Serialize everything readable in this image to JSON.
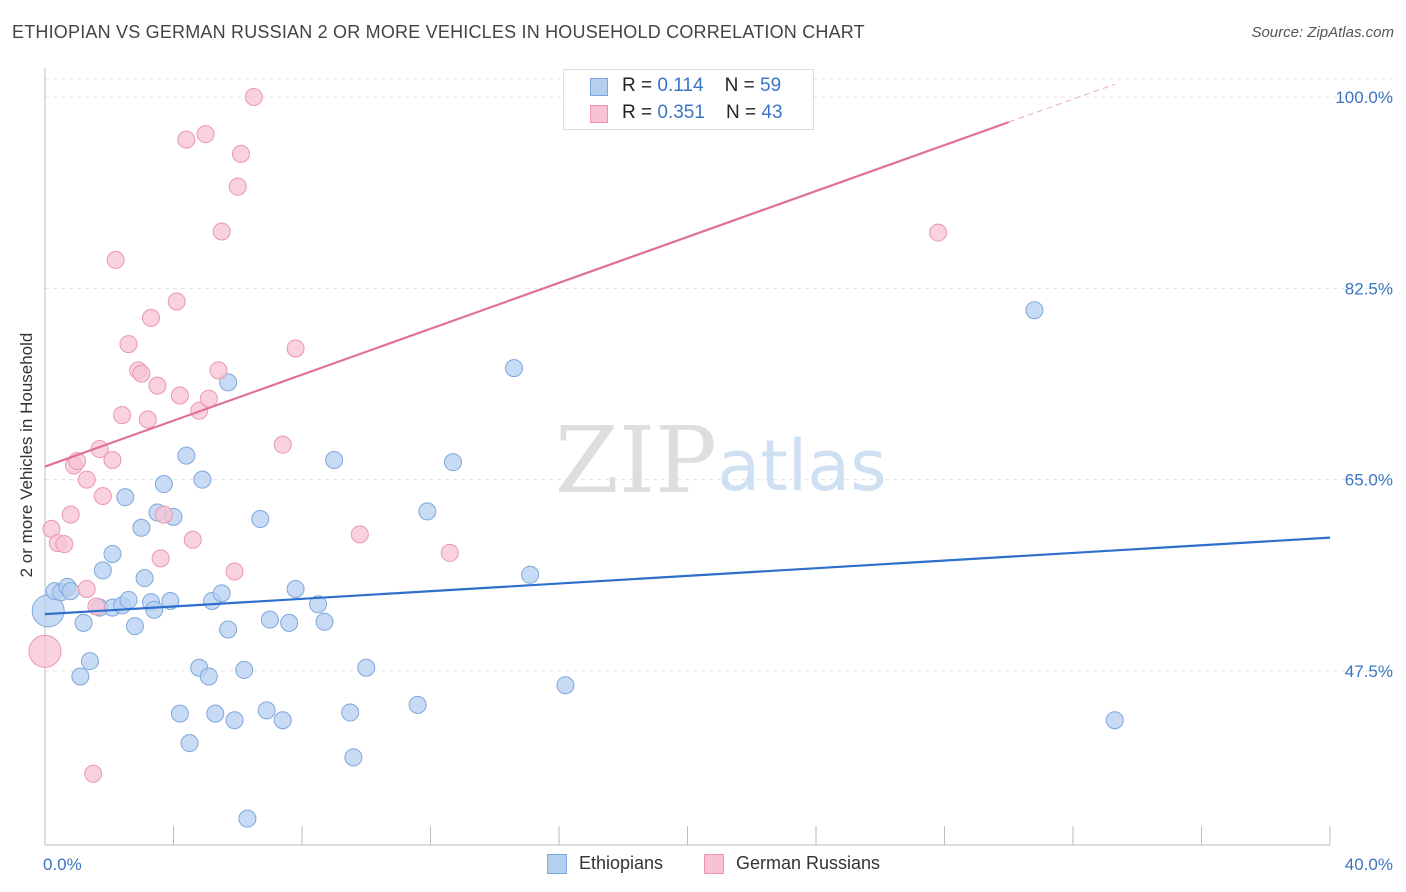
{
  "header": {
    "title": "ETHIOPIAN VS GERMAN RUSSIAN 2 OR MORE VEHICLES IN HOUSEHOLD CORRELATION CHART",
    "source": "Source: ZipAtlas.com"
  },
  "watermark": {
    "zip": "ZIP",
    "atlas": "atlas"
  },
  "legend_top": {
    "rows": [
      {
        "r_label": "R = ",
        "r_value": "0.114",
        "n_label": "N = ",
        "n_value": "59"
      },
      {
        "r_label": "R = ",
        "r_value": "0.351",
        "n_label": "N = ",
        "n_value": "43"
      }
    ]
  },
  "chart_data": {
    "type": "scatter",
    "title": "ETHIOPIAN VS GERMAN RUSSIAN 2 OR MORE VEHICLES IN HOUSEHOLD CORRELATION CHART",
    "xlabel": "",
    "ylabel": "2 or more Vehicles in Household",
    "xlim": [
      0,
      40
    ],
    "ylim": [
      32,
      102
    ],
    "x_tick_labels": [
      "0.0%",
      "40.0%"
    ],
    "y_ticks": [
      47.5,
      65.0,
      82.5,
      100.0
    ],
    "y_tick_labels": [
      "47.5%",
      "65.0%",
      "82.5%",
      "100.0%"
    ],
    "grid": true,
    "legend_position": "bottom",
    "colors": {
      "ethiopians_fill": "#b5cff0",
      "ethiopians_stroke": "#7fa7dc",
      "ethiopians_line": "#2e6fcc",
      "german_fill": "#f7c3d3",
      "german_stroke": "#eb97b2",
      "german_line": "#e0709a",
      "axis_text": "#3a75c4"
    },
    "series": [
      {
        "name": "Ethiopians",
        "r": 0.114,
        "n": 59,
        "trend": {
          "x0": 0.0,
          "y0": 52.7,
          "x1": 40.0,
          "y1": 59.7
        },
        "points": [
          [
            0.1,
            53.0,
            2
          ],
          [
            0.3,
            54.8,
            1
          ],
          [
            0.5,
            54.7,
            1
          ],
          [
            0.7,
            55.2,
            1
          ],
          [
            0.8,
            54.8,
            1
          ],
          [
            1.1,
            47.0,
            1
          ],
          [
            1.2,
            51.9,
            1
          ],
          [
            1.4,
            48.4,
            1
          ],
          [
            1.7,
            53.3,
            1
          ],
          [
            1.8,
            56.7,
            1
          ],
          [
            2.1,
            53.3,
            1
          ],
          [
            2.1,
            58.2,
            1
          ],
          [
            2.4,
            53.5,
            1
          ],
          [
            2.5,
            63.4,
            1
          ],
          [
            2.6,
            54.0,
            1
          ],
          [
            2.8,
            51.6,
            1
          ],
          [
            3.0,
            60.6,
            1
          ],
          [
            3.1,
            56.0,
            1
          ],
          [
            3.3,
            53.8,
            1
          ],
          [
            3.4,
            53.1,
            1
          ],
          [
            3.5,
            62.0,
            1
          ],
          [
            3.7,
            64.6,
            1
          ],
          [
            3.9,
            53.9,
            1
          ],
          [
            4.0,
            61.6,
            1
          ],
          [
            4.2,
            43.6,
            1
          ],
          [
            4.4,
            67.2,
            1
          ],
          [
            4.5,
            40.9,
            1
          ],
          [
            4.8,
            47.8,
            1
          ],
          [
            4.9,
            65.0,
            1
          ],
          [
            5.1,
            47.0,
            1
          ],
          [
            5.2,
            53.9,
            1
          ],
          [
            5.3,
            43.6,
            1
          ],
          [
            5.5,
            54.6,
            1
          ],
          [
            5.7,
            51.3,
            1
          ],
          [
            5.7,
            73.9,
            1
          ],
          [
            5.9,
            43.0,
            1
          ],
          [
            6.2,
            47.6,
            1
          ],
          [
            6.3,
            34.0,
            1
          ],
          [
            6.7,
            61.4,
            1
          ],
          [
            6.9,
            43.9,
            1
          ],
          [
            7.0,
            52.2,
            1
          ],
          [
            7.4,
            43.0,
            1
          ],
          [
            7.6,
            51.9,
            1
          ],
          [
            7.8,
            55.0,
            1
          ],
          [
            8.5,
            53.6,
            1
          ],
          [
            8.7,
            52.0,
            1
          ],
          [
            9.0,
            66.8,
            1
          ],
          [
            9.5,
            43.7,
            1
          ],
          [
            9.6,
            39.6,
            1
          ],
          [
            10.0,
            47.8,
            1
          ],
          [
            11.6,
            44.4,
            1
          ],
          [
            11.9,
            62.1,
            1
          ],
          [
            12.7,
            66.6,
            1
          ],
          [
            14.6,
            75.2,
            1
          ],
          [
            15.1,
            56.3,
            1
          ],
          [
            16.2,
            46.2,
            1
          ],
          [
            30.8,
            80.5,
            1
          ],
          [
            33.3,
            43.0,
            1
          ]
        ]
      },
      {
        "name": "German Russians",
        "r": 0.351,
        "n": 43,
        "trend": {
          "x0": 0.0,
          "y0": 66.2,
          "x1": 30.0,
          "y1": 97.7
        },
        "points": [
          [
            0.0,
            49.3,
            2
          ],
          [
            0.2,
            60.5,
            1
          ],
          [
            0.4,
            59.2,
            1
          ],
          [
            0.6,
            59.1,
            1
          ],
          [
            0.8,
            61.8,
            1
          ],
          [
            0.9,
            66.3,
            1
          ],
          [
            1.0,
            66.7,
            1
          ],
          [
            1.3,
            55.0,
            1
          ],
          [
            1.3,
            65.0,
            1
          ],
          [
            1.5,
            38.1,
            1
          ],
          [
            1.6,
            53.4,
            1
          ],
          [
            1.7,
            67.8,
            1
          ],
          [
            1.8,
            63.5,
            1
          ],
          [
            2.1,
            66.8,
            1
          ],
          [
            2.2,
            85.1,
            1
          ],
          [
            2.4,
            70.9,
            1
          ],
          [
            2.6,
            77.4,
            1
          ],
          [
            2.9,
            75.0,
            1
          ],
          [
            3.0,
            74.7,
            1
          ],
          [
            3.2,
            70.5,
            1
          ],
          [
            3.3,
            79.8,
            1
          ],
          [
            3.5,
            73.6,
            1
          ],
          [
            3.6,
            57.8,
            1
          ],
          [
            3.7,
            61.8,
            1
          ],
          [
            4.1,
            81.3,
            1
          ],
          [
            4.2,
            72.7,
            1
          ],
          [
            4.4,
            96.1,
            1
          ],
          [
            4.6,
            59.5,
            1
          ],
          [
            4.8,
            71.3,
            1
          ],
          [
            5.0,
            96.6,
            1
          ],
          [
            5.1,
            72.4,
            1
          ],
          [
            5.4,
            75.0,
            1
          ],
          [
            5.5,
            87.7,
            1
          ],
          [
            5.9,
            56.6,
            1
          ],
          [
            6.0,
            91.8,
            1
          ],
          [
            6.1,
            94.8,
            1
          ],
          [
            6.5,
            100.0,
            1
          ],
          [
            7.4,
            68.2,
            1
          ],
          [
            7.8,
            77.0,
            1
          ],
          [
            9.8,
            60.0,
            1
          ],
          [
            12.6,
            58.3,
            1
          ],
          [
            27.8,
            87.6,
            1
          ]
        ]
      }
    ]
  },
  "legend_bottom": {
    "items": [
      {
        "label": "Ethiopians"
      },
      {
        "label": "German Russians"
      }
    ]
  }
}
